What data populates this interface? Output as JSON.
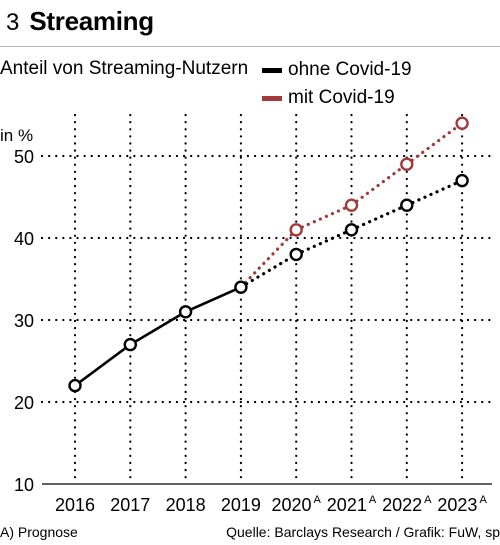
{
  "header": {
    "figure_number": "3",
    "title": "Streaming"
  },
  "chart_data": {
    "type": "line",
    "title": "Streaming",
    "subtitle": "Anteil von Streaming-Nutzern",
    "ylabel": "in %",
    "xlabel": "",
    "categories": [
      "2016",
      "2017",
      "2018",
      "2019",
      "2020",
      "2021",
      "2022",
      "2023"
    ],
    "category_superscripts": [
      "",
      "",
      "",
      "",
      "A",
      "A",
      "A",
      "A"
    ],
    "ylim": [
      10,
      55
    ],
    "yticks": [
      10,
      20,
      30,
      40,
      50
    ],
    "grid": "dotted",
    "legend_position": "top-right",
    "series": [
      {
        "name": "ohne Covid-19",
        "color": "#000000",
        "values": [
          22,
          27,
          31,
          34,
          38,
          41,
          44,
          47
        ],
        "solid_until_index": 3
      },
      {
        "name": "mit Covid-19",
        "color": "#a33a3a",
        "values": [
          null,
          null,
          null,
          34,
          41,
          44,
          49,
          54
        ],
        "solid_until_index": -1
      }
    ]
  },
  "footer": {
    "footnote": "A) Prognose",
    "source": "Quelle: Barclays Research / Grafik: FuW, sp"
  }
}
